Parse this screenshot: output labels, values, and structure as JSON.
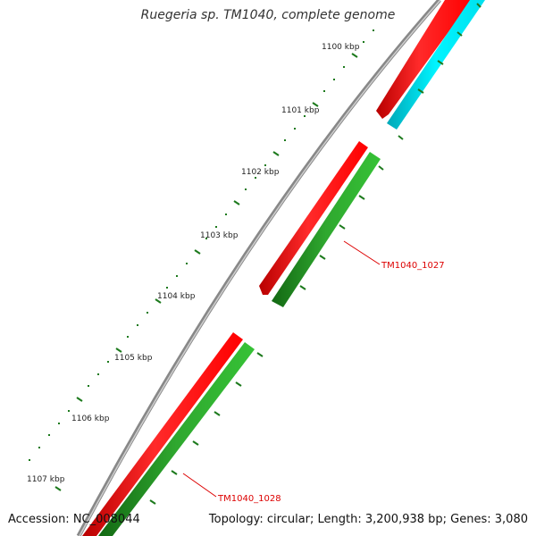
{
  "title": "Ruegeria sp. TM1040, complete genome",
  "accession_label": "Accession: NC_008044",
  "summary_label": "Topology: circular; Length: 3,200,938 bp; Genes: 3,080",
  "colors": {
    "backbone": "#8c8c8c",
    "ticks": "#1d7a1d",
    "gene_red": "#ff1a1a",
    "gene_cyan": "#00e5f0",
    "gene_green": "#2fa82f",
    "label": "#dd0000"
  },
  "tick_labels": [
    "1100 kbp",
    "1101 kbp",
    "1102 kbp",
    "1103 kbp",
    "1104 kbp",
    "1105 kbp",
    "1106 kbp",
    "1107 kbp"
  ],
  "gene_labels": [
    "TM1040_1027",
    "TM1040_1028"
  ]
}
